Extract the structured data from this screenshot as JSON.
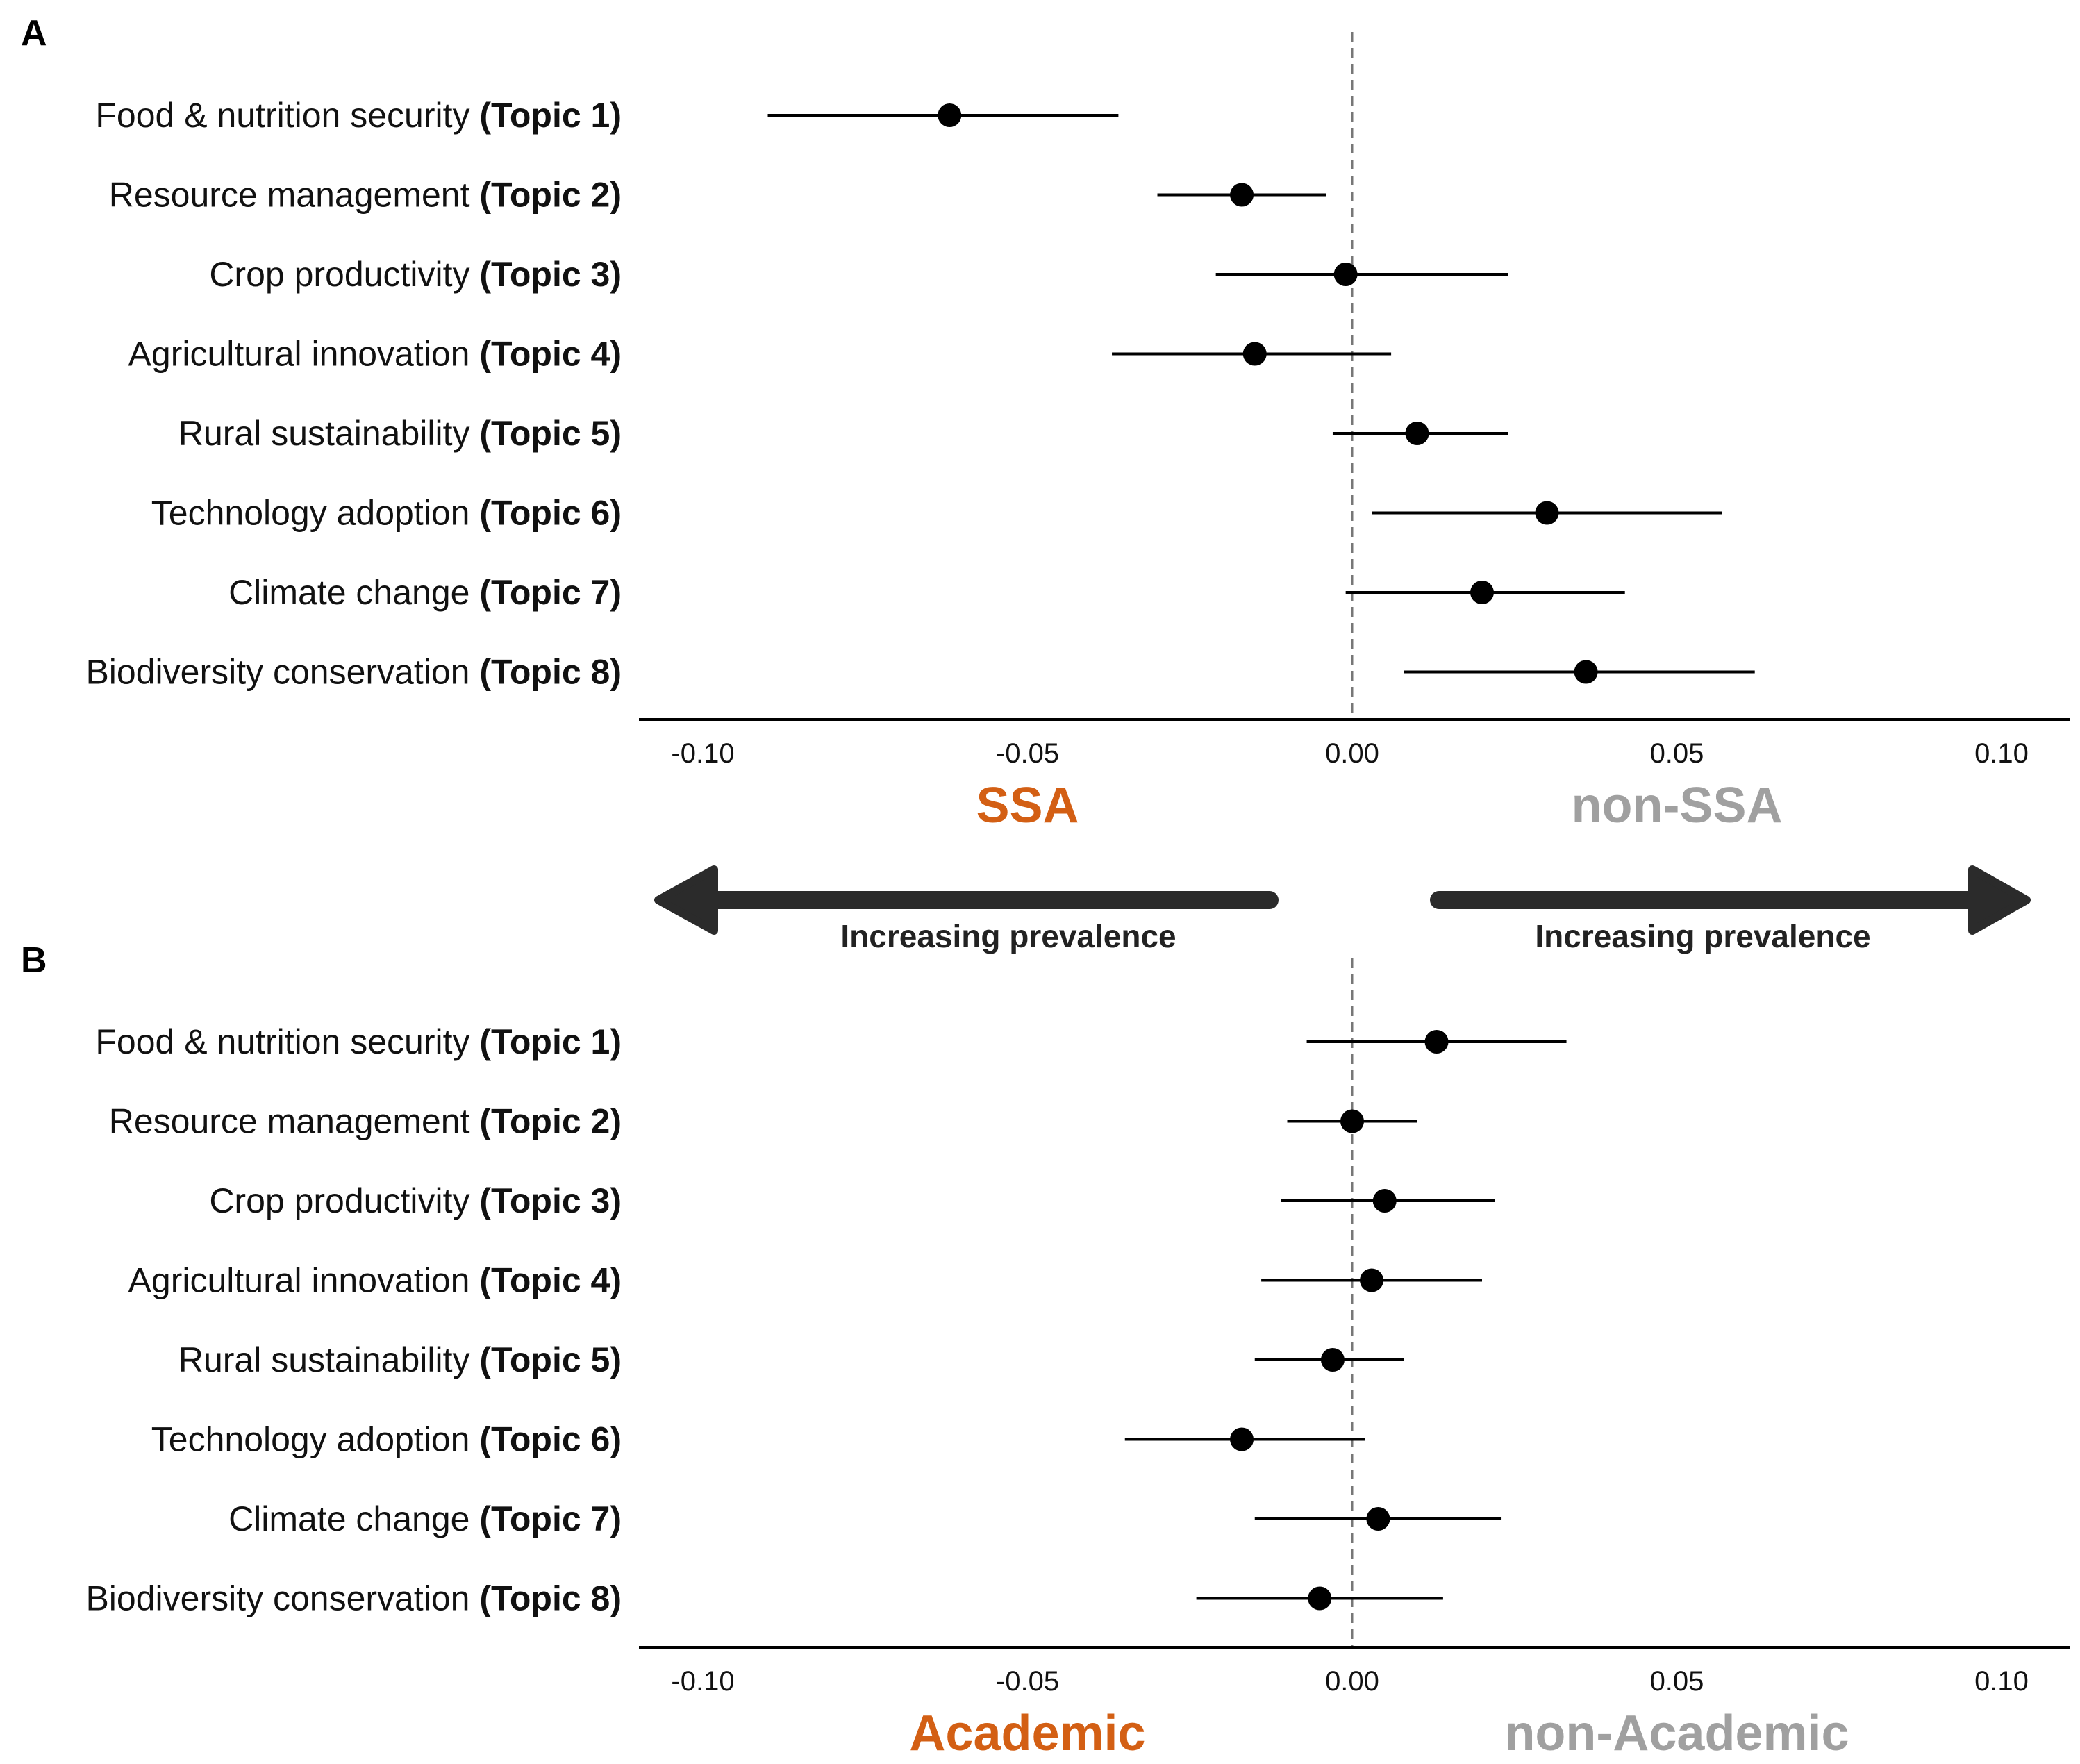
{
  "colors": {
    "left_group": "#d35f14",
    "right_group": "#a0a0a0",
    "point": "#000000",
    "whisker": "#000000",
    "zero_line": "#777777",
    "arrow": "#2b2b2b"
  },
  "arrows": {
    "left_label": "Increasing prevalence",
    "right_label": "Increasing prevalence"
  },
  "chart_data": [
    {
      "type": "scatter",
      "subtype": "forest-plot (point estimate with interval)",
      "panel": "A",
      "xlim": [
        -0.11,
        0.11
      ],
      "xticks": [
        -0.1,
        -0.05,
        0.0,
        0.05,
        0.1
      ],
      "tick_labels": [
        "-0.10",
        "-0.05",
        "0.00",
        "0.05",
        "0.10"
      ],
      "reference_line": 0,
      "group_left": "SSA",
      "group_right": "non-SSA",
      "categories": [
        {
          "name": "Food & nutrition security",
          "topic": "(Topic 1)",
          "estimate": -0.062,
          "lower": -0.09,
          "upper": -0.036
        },
        {
          "name": "Resource management",
          "topic": "(Topic 2)",
          "estimate": -0.017,
          "lower": -0.03,
          "upper": -0.004
        },
        {
          "name": "Crop productivity",
          "topic": "(Topic 3)",
          "estimate": -0.001,
          "lower": -0.021,
          "upper": 0.024
        },
        {
          "name": "Agricultural innovation",
          "topic": "(Topic 4)",
          "estimate": -0.015,
          "lower": -0.037,
          "upper": 0.006
        },
        {
          "name": "Rural sustainability",
          "topic": "(Topic 5)",
          "estimate": 0.01,
          "lower": -0.003,
          "upper": 0.024
        },
        {
          "name": "Technology adoption",
          "topic": "(Topic 6)",
          "estimate": 0.03,
          "lower": 0.003,
          "upper": 0.057
        },
        {
          "name": "Climate change",
          "topic": "(Topic 7)",
          "estimate": 0.02,
          "lower": -0.001,
          "upper": 0.042
        },
        {
          "name": "Biodiversity conservation",
          "topic": "(Topic 8)",
          "estimate": 0.036,
          "lower": 0.008,
          "upper": 0.062
        }
      ]
    },
    {
      "type": "scatter",
      "subtype": "forest-plot (point estimate with interval)",
      "panel": "B",
      "xlim": [
        -0.11,
        0.11
      ],
      "xticks": [
        -0.1,
        -0.05,
        0.0,
        0.05,
        0.1
      ],
      "tick_labels": [
        "-0.10",
        "-0.05",
        "0.00",
        "0.05",
        "0.10"
      ],
      "reference_line": 0,
      "group_left": "Academic",
      "group_right": "non-Academic",
      "categories": [
        {
          "name": "Food & nutrition security",
          "topic": "(Topic 1)",
          "estimate": 0.013,
          "lower": -0.007,
          "upper": 0.033
        },
        {
          "name": "Resource management",
          "topic": "(Topic 2)",
          "estimate": 0.0,
          "lower": -0.01,
          "upper": 0.01
        },
        {
          "name": "Crop productivity",
          "topic": "(Topic 3)",
          "estimate": 0.005,
          "lower": -0.011,
          "upper": 0.022
        },
        {
          "name": "Agricultural innovation",
          "topic": "(Topic 4)",
          "estimate": 0.003,
          "lower": -0.014,
          "upper": 0.02
        },
        {
          "name": "Rural sustainability",
          "topic": "(Topic 5)",
          "estimate": -0.003,
          "lower": -0.015,
          "upper": 0.008
        },
        {
          "name": "Technology adoption",
          "topic": "(Topic 6)",
          "estimate": -0.017,
          "lower": -0.035,
          "upper": 0.002
        },
        {
          "name": "Climate change",
          "topic": "(Topic 7)",
          "estimate": 0.004,
          "lower": -0.015,
          "upper": 0.023
        },
        {
          "name": "Biodiversity conservation",
          "topic": "(Topic 8)",
          "estimate": -0.005,
          "lower": -0.024,
          "upper": 0.014
        }
      ]
    }
  ]
}
